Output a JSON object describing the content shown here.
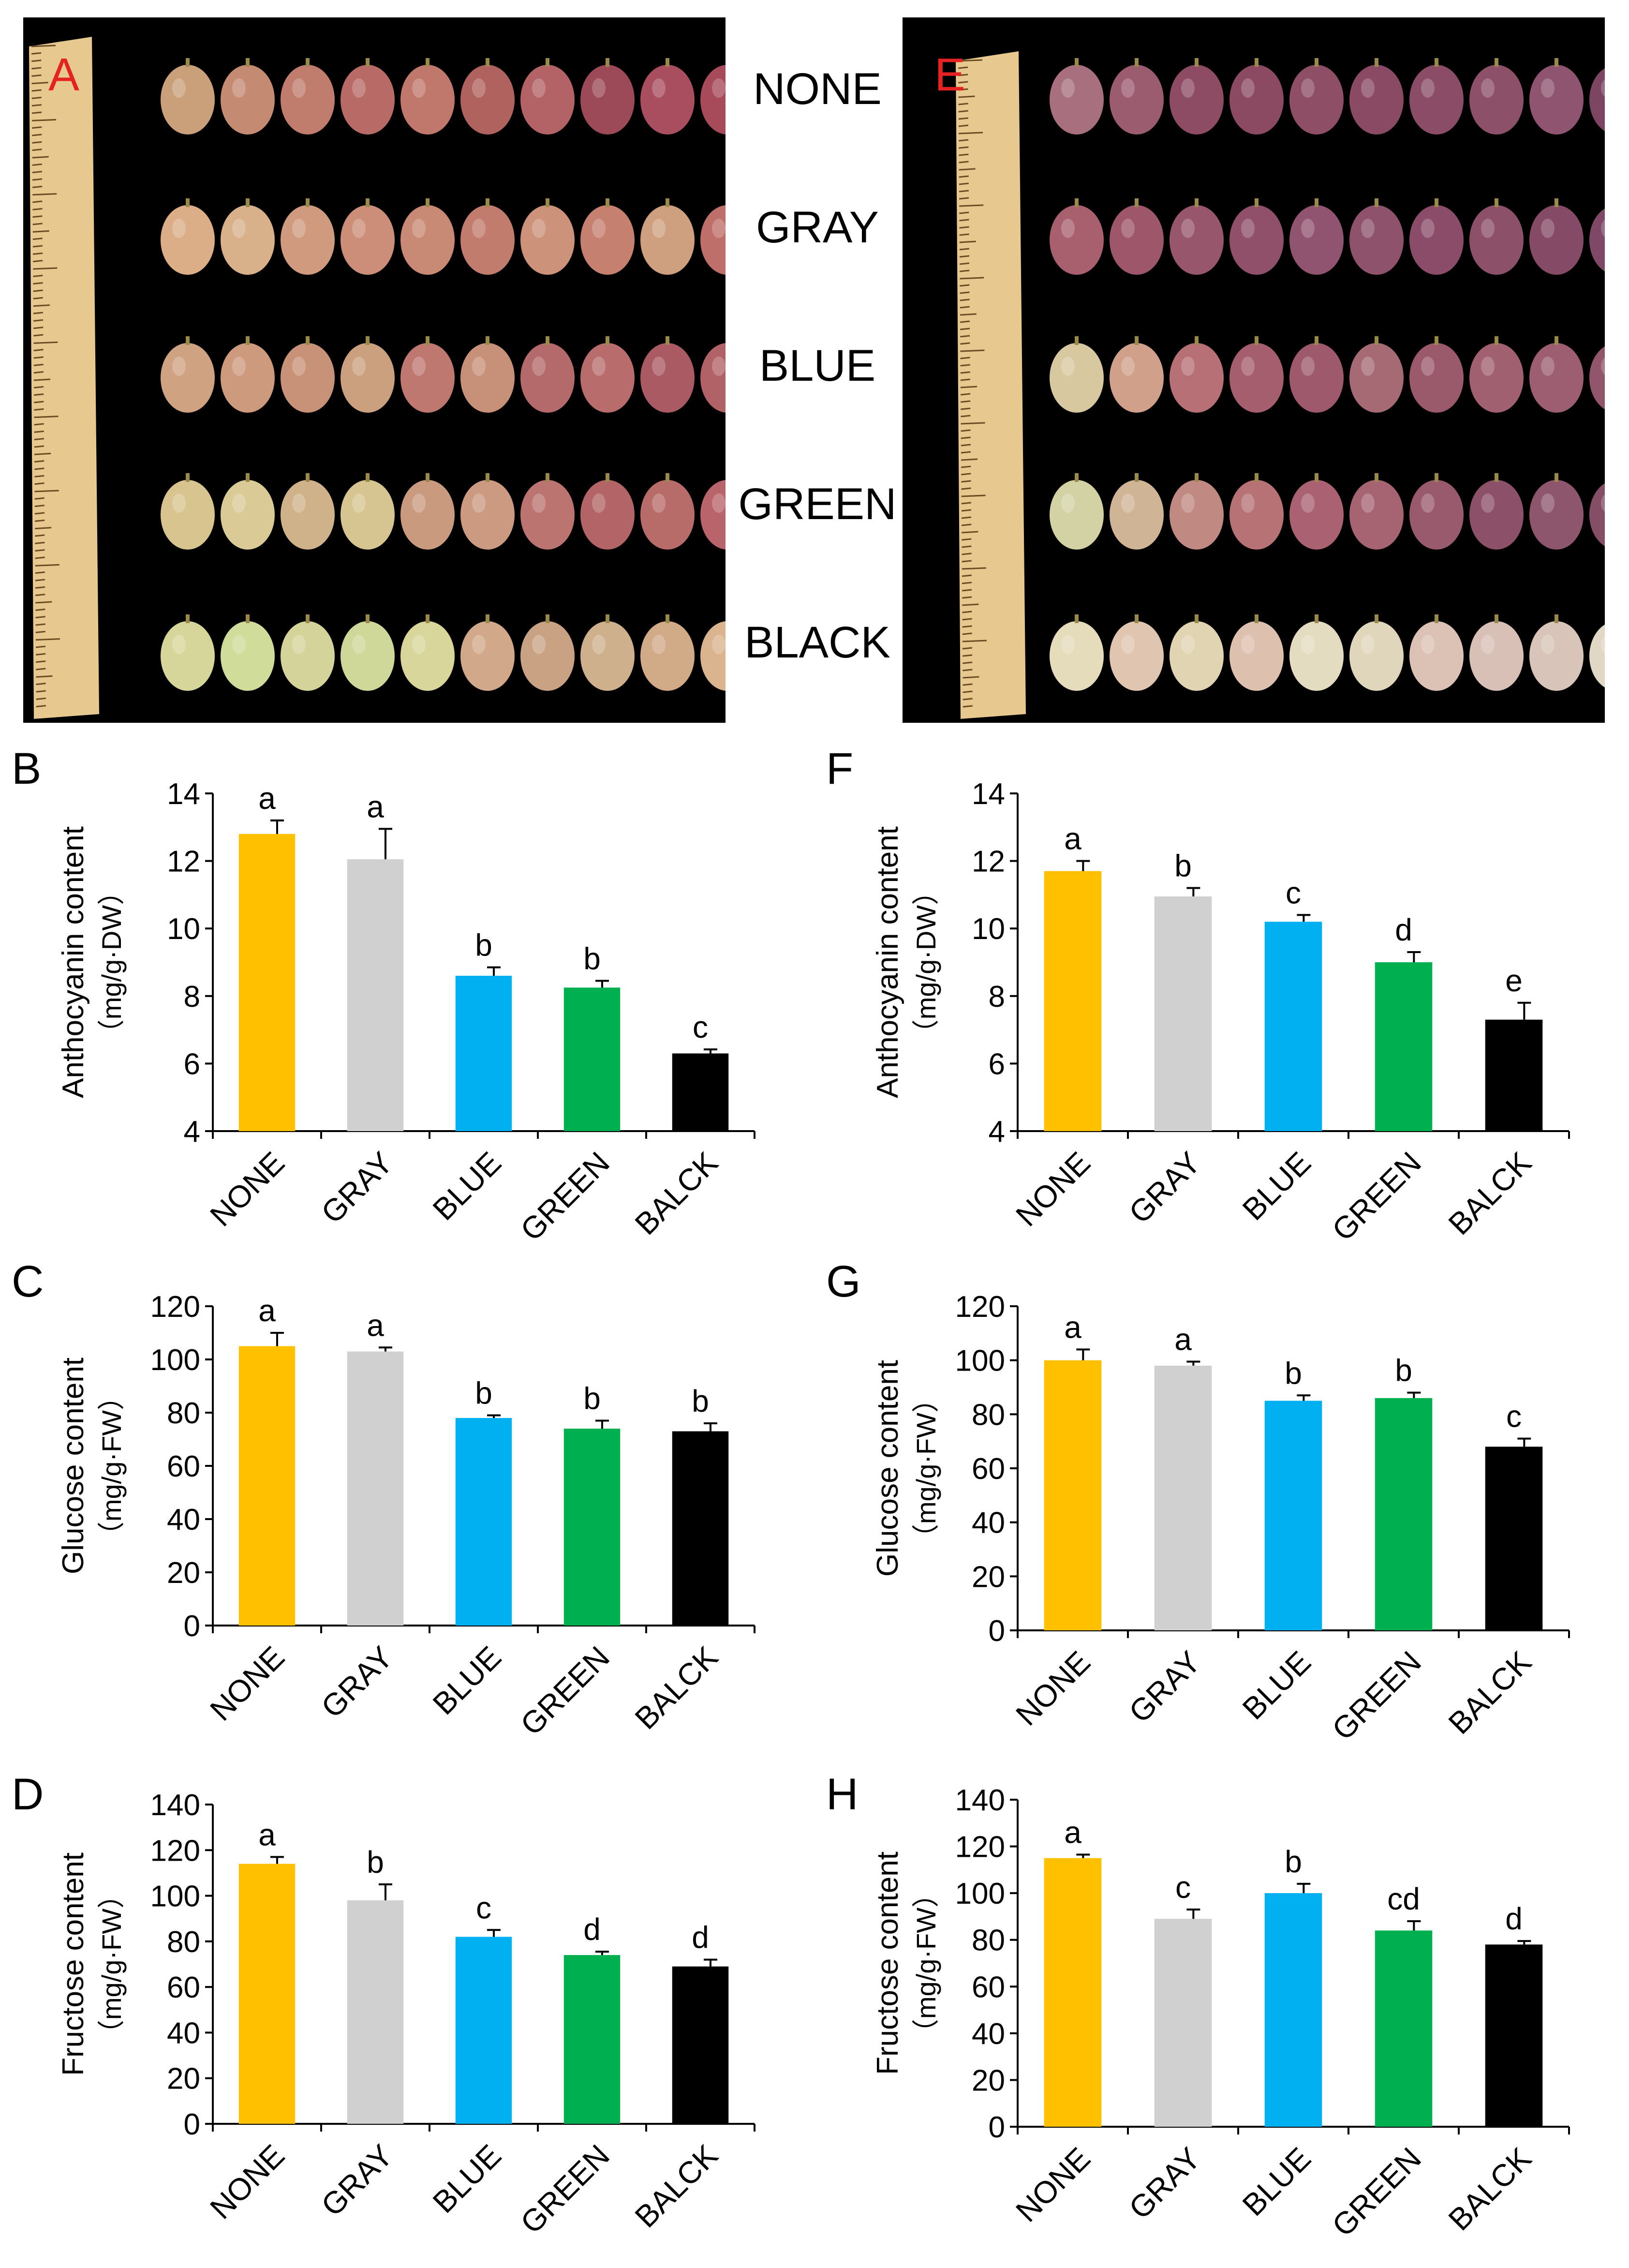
{
  "figure": {
    "panel_a_letter": "A",
    "panel_e_letter": "E",
    "treatments": [
      "NONE",
      "GRAY",
      "BLUE",
      "GREEN",
      "BLACK"
    ],
    "colors": {
      "NONE": "#FFC000",
      "GRAY": "#D0D0D0",
      "BLUE": "#00B0F0",
      "GREEN": "#00B050",
      "BALCK": "#000000",
      "photo_bg": "#000000",
      "letter": "#E52222"
    }
  },
  "chart_data": [
    {
      "panel": "B",
      "type": "bar",
      "categories": [
        "NONE",
        "GRAY",
        "BLUE",
        "GREEN",
        "BALCK"
      ],
      "values": [
        12.8,
        12.05,
        8.6,
        8.25,
        6.3
      ],
      "errors": [
        0.4,
        0.9,
        0.25,
        0.2,
        0.12
      ],
      "letters": [
        "a",
        "a",
        "b",
        "b",
        "c"
      ],
      "ylabel": "Anthocyanin content",
      "ylabel_unit": "（mg/g·DW）",
      "ylim": [
        4,
        14
      ],
      "yticks": [
        4,
        6,
        8,
        10,
        12,
        14
      ]
    },
    {
      "panel": "F",
      "type": "bar",
      "categories": [
        "NONE",
        "GRAY",
        "BLUE",
        "GREEN",
        "BALCK"
      ],
      "values": [
        11.7,
        10.95,
        10.2,
        9.0,
        7.3
      ],
      "errors": [
        0.3,
        0.25,
        0.2,
        0.3,
        0.5
      ],
      "letters": [
        "a",
        "b",
        "c",
        "d",
        "e"
      ],
      "ylabel": "Anthocyanin content",
      "ylabel_unit": "（mg/g·DW）",
      "ylim": [
        4,
        14
      ],
      "yticks": [
        4,
        6,
        8,
        10,
        12,
        14
      ]
    },
    {
      "panel": "C",
      "type": "bar",
      "categories": [
        "NONE",
        "GRAY",
        "BLUE",
        "GREEN",
        "BALCK"
      ],
      "values": [
        105,
        103,
        78,
        74,
        73
      ],
      "errors": [
        5,
        1.5,
        1,
        3,
        3
      ],
      "letters": [
        "a",
        "a",
        "b",
        "b",
        "b"
      ],
      "ylabel": "Glucose content",
      "ylabel_unit": "（mg/g·FW）",
      "ylim": [
        0,
        120
      ],
      "yticks": [
        0,
        20,
        40,
        60,
        80,
        100,
        120
      ]
    },
    {
      "panel": "G",
      "type": "bar",
      "categories": [
        "NONE",
        "GRAY",
        "BLUE",
        "GREEN",
        "BALCK"
      ],
      "values": [
        100,
        98,
        85,
        86,
        68
      ],
      "errors": [
        4,
        1.5,
        2,
        2,
        3
      ],
      "letters": [
        "a",
        "a",
        "b",
        "b",
        "c"
      ],
      "ylabel": "Glucose content",
      "ylabel_unit": "（mg/g·FW）",
      "ylim": [
        0,
        120
      ],
      "yticks": [
        0,
        20,
        40,
        60,
        80,
        100,
        120
      ]
    },
    {
      "panel": "D",
      "type": "bar",
      "categories": [
        "NONE",
        "GRAY",
        "BLUE",
        "GREEN",
        "BALCK"
      ],
      "values": [
        114,
        98,
        82,
        74,
        69
      ],
      "errors": [
        3,
        7,
        3,
        1.5,
        3
      ],
      "letters": [
        "a",
        "b",
        "c",
        "d",
        "d"
      ],
      "ylabel": "Fructose content",
      "ylabel_unit": "（mg/g·FW）",
      "ylim": [
        0,
        140
      ],
      "yticks": [
        0,
        20,
        40,
        60,
        80,
        100,
        120,
        140
      ]
    },
    {
      "panel": "H",
      "type": "bar",
      "categories": [
        "NONE",
        "GRAY",
        "BLUE",
        "GREEN",
        "BALCK"
      ],
      "values": [
        115,
        89,
        100,
        84,
        78
      ],
      "errors": [
        1.5,
        4,
        4,
        4,
        1.5
      ],
      "letters": [
        "a",
        "c",
        "b",
        "cd",
        "d"
      ],
      "ylabel": "Fructose content",
      "ylabel_unit": "（mg/g·FW）",
      "ylim": [
        0,
        140
      ],
      "yticks": [
        0,
        20,
        40,
        60,
        80,
        100,
        120,
        140
      ]
    }
  ]
}
